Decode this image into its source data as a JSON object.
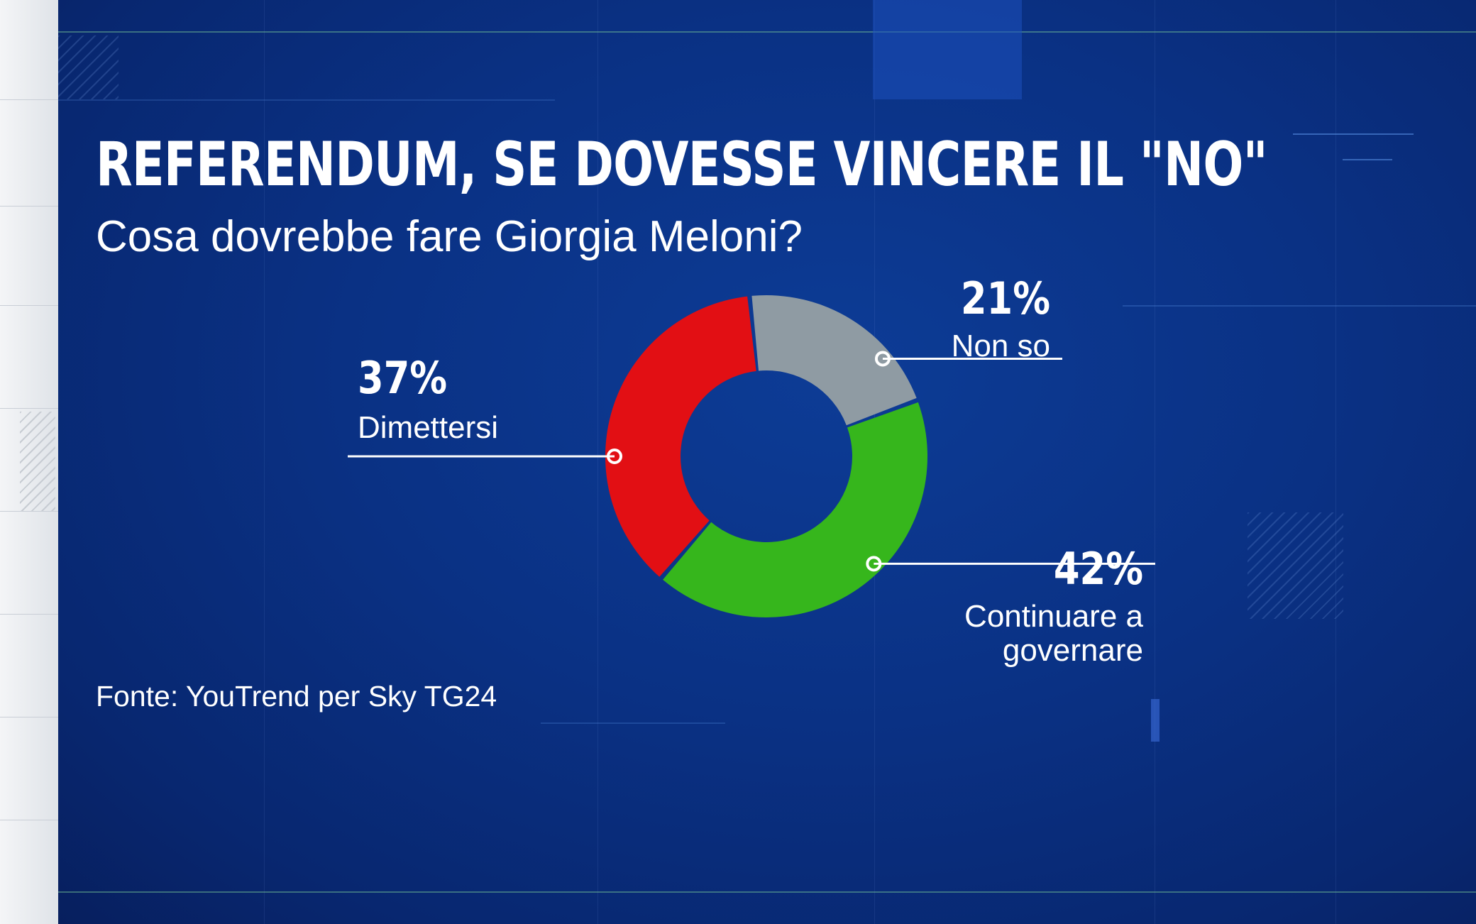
{
  "title": "REFERENDUM, SE DOVESSE VINCERE IL \"NO\"",
  "subtitle": "Cosa dovrebbe fare Giorgia Meloni?",
  "source": "Fonte: YouTrend per Sky TG24",
  "chart_data": {
    "type": "pie",
    "style": "donut",
    "title": "REFERENDUM, SE DOVESSE VINCERE IL \"NO\"",
    "subtitle": "Cosa dovrebbe fare Giorgia Meloni?",
    "unit": "%",
    "slices": [
      {
        "label": "Non so",
        "value": 21,
        "value_label": "21%",
        "color": "#8f9ba3"
      },
      {
        "label": "Continuare a governare",
        "label_lines": [
          "Continuare a",
          "governare"
        ],
        "value": 42,
        "value_label": "42%",
        "color": "#36b61c"
      },
      {
        "label": "Dimettersi",
        "value": 37,
        "value_label": "37%",
        "color": "#e20f14"
      }
    ],
    "legend": "none"
  }
}
